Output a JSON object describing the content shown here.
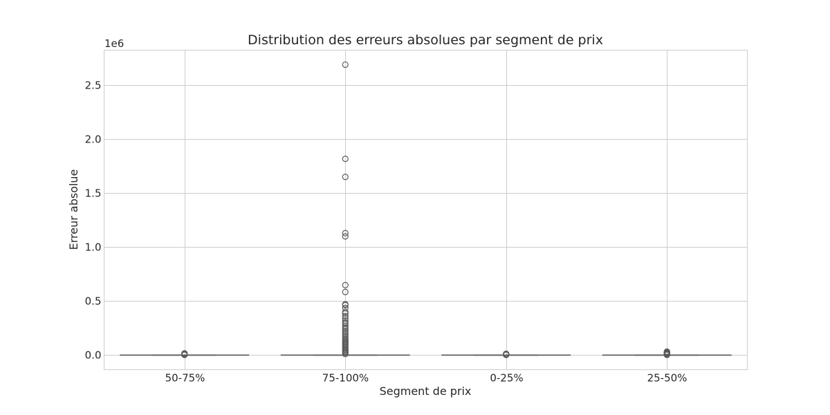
{
  "chart_data": {
    "type": "box",
    "title": "Distribution des erreurs absolues par segment de prix",
    "xlabel": "Segment de prix",
    "ylabel": "Erreur absolue",
    "y_offset_label": "1e6",
    "y_scale": 1000000,
    "ylim": [
      -0.135,
      2.82
    ],
    "y_ticks": [
      0.0,
      0.5,
      1.0,
      1.5,
      2.0,
      2.5
    ],
    "y_tick_labels": [
      "0.0",
      "0.5",
      "1.0",
      "1.5",
      "2.0",
      "2.5"
    ],
    "grid": true,
    "categories": [
      "50-75%",
      "75-100%",
      "0-25%",
      "25-50%"
    ],
    "boxes": [
      {
        "category": "50-75%",
        "whisker_low": 0.0,
        "q1": 0.0,
        "median": 0.0,
        "q3": 0.0,
        "whisker_high": 0.0,
        "outliers": [
          0.002,
          0.004,
          0.006,
          0.008,
          0.01,
          0.012,
          0.014,
          0.016
        ]
      },
      {
        "category": "75-100%",
        "whisker_low": 0.0,
        "q1": 0.0,
        "median": 0.0,
        "q3": 0.0,
        "whisker_high": 0.0,
        "outliers": [
          2.686,
          1.815,
          1.648,
          1.128,
          1.098,
          0.647,
          0.584,
          0.47,
          0.462,
          0.436,
          0.4,
          0.385,
          0.36,
          0.34,
          0.32,
          0.3,
          0.29,
          0.27,
          0.255,
          0.24,
          0.225,
          0.21,
          0.195,
          0.18,
          0.165,
          0.15,
          0.14,
          0.13,
          0.12,
          0.11,
          0.1,
          0.09,
          0.08,
          0.07,
          0.06,
          0.05,
          0.04,
          0.03,
          0.02,
          0.01
        ]
      },
      {
        "category": "0-25%",
        "whisker_low": 0.0,
        "q1": 0.0,
        "median": 0.0,
        "q3": 0.0,
        "whisker_high": 0.0,
        "outliers": [
          0.002,
          0.004,
          0.006,
          0.008,
          0.01,
          0.012
        ]
      },
      {
        "category": "25-50%",
        "whisker_low": 0.0,
        "q1": 0.0,
        "median": 0.0,
        "q3": 0.0,
        "whisker_high": 0.0,
        "outliers": [
          0.002,
          0.005,
          0.008,
          0.012,
          0.016,
          0.02,
          0.024,
          0.028,
          0.032
        ]
      }
    ]
  }
}
